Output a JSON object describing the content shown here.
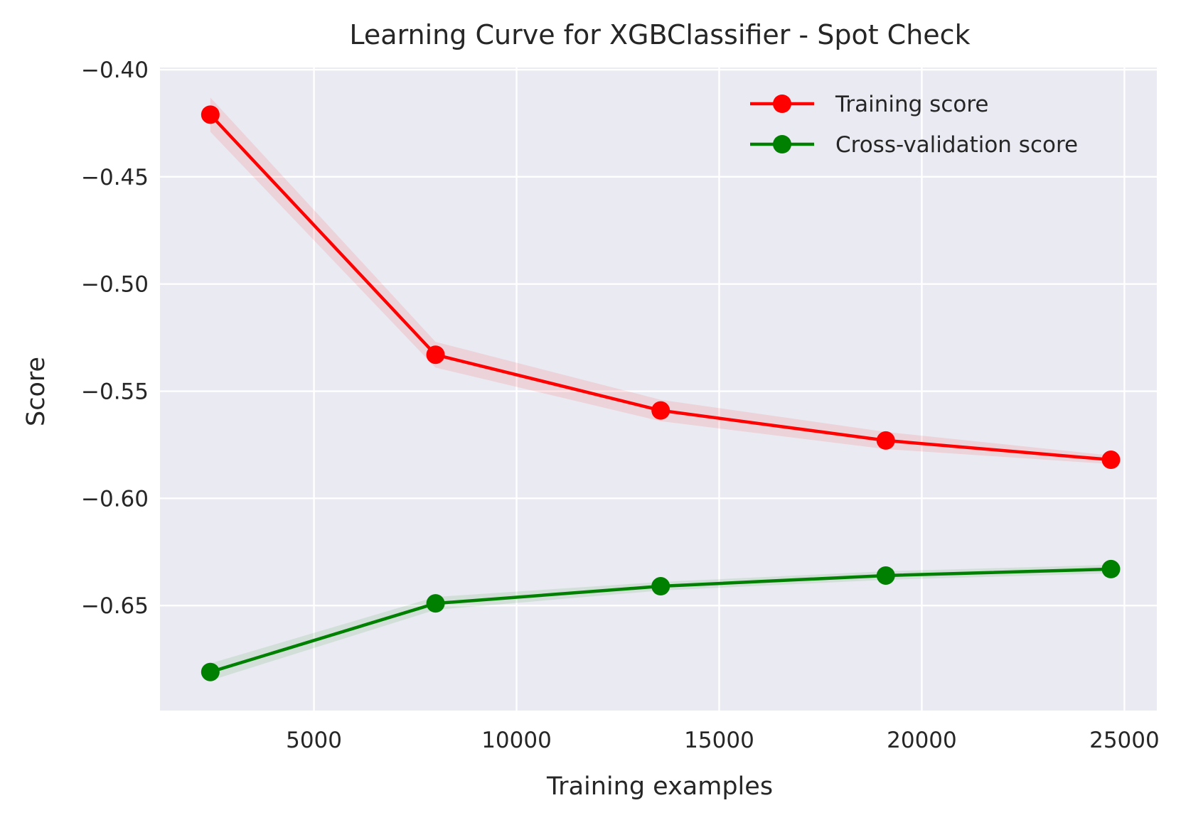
{
  "chart_data": {
    "type": "line",
    "title": "Learning Curve for XGBClassifier - Spot Check",
    "xlabel": "Training examples",
    "ylabel": "Score",
    "xlim": [
      1200,
      25800
    ],
    "ylim": [
      -0.699,
      -0.399
    ],
    "x_ticks": [
      5000,
      10000,
      15000,
      20000,
      25000
    ],
    "x_tick_labels": [
      "5000",
      "10000",
      "15000",
      "20000",
      "25000"
    ],
    "y_ticks": [
      -0.4,
      -0.45,
      -0.5,
      -0.55,
      -0.6,
      -0.65
    ],
    "y_tick_labels": [
      "−0.40",
      "−0.45",
      "−0.50",
      "−0.55",
      "−0.60",
      "−0.65"
    ],
    "grid": true,
    "legend_position": "top-right",
    "colors": {
      "background": "#eaeaf2",
      "grid": "#ffffff"
    },
    "x": [
      2443,
      8000,
      13556,
      19111,
      24668
    ],
    "series": [
      {
        "name": "Training score",
        "color": "#ff0000",
        "values": [
          -0.421,
          -0.533,
          -0.559,
          -0.573,
          -0.582
        ],
        "band_lower": [
          -0.429,
          -0.539,
          -0.564,
          -0.577,
          -0.584
        ],
        "band_upper": [
          -0.413,
          -0.527,
          -0.554,
          -0.569,
          -0.58
        ]
      },
      {
        "name": "Cross-validation score",
        "color": "#008000",
        "values": [
          -0.681,
          -0.649,
          -0.641,
          -0.636,
          -0.633
        ],
        "band_lower": [
          -0.685,
          -0.652,
          -0.643,
          -0.638,
          -0.635
        ],
        "band_upper": [
          -0.677,
          -0.646,
          -0.639,
          -0.634,
          -0.631
        ]
      }
    ]
  }
}
